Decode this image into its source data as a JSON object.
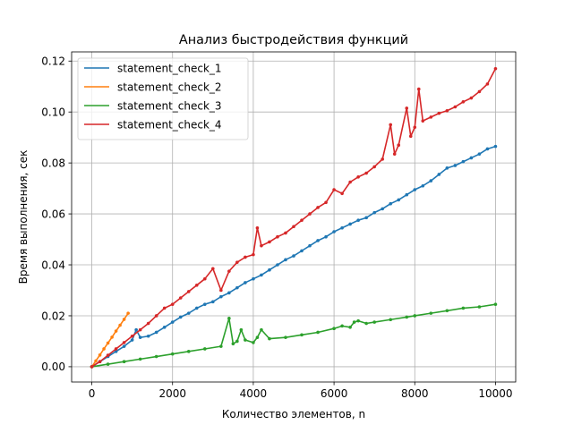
{
  "chart_data": {
    "type": "line",
    "title": "Анализ быстродействия функций",
    "xlabel": "Количество элементов, n",
    "ylabel": "Время выполнения, сек",
    "xlim": [
      -500,
      10500
    ],
    "ylim": [
      -0.006,
      0.1236
    ],
    "xticks": [
      0,
      2000,
      4000,
      6000,
      8000,
      10000
    ],
    "xtick_labels": [
      "0",
      "2000",
      "4000",
      "6000",
      "8000",
      "10000"
    ],
    "yticks": [
      0.0,
      0.02,
      0.04,
      0.06,
      0.08,
      0.1,
      0.12
    ],
    "ytick_labels": [
      "0.00",
      "0.02",
      "0.04",
      "0.06",
      "0.08",
      "0.10",
      "0.12"
    ],
    "grid": true,
    "legend": "top-left",
    "markers": true,
    "series": [
      {
        "name": "statement_check_1",
        "color": "#1f77b4",
        "x": [
          0,
          200,
          400,
          600,
          800,
          1000,
          1100,
          1200,
          1400,
          1600,
          1800,
          2000,
          2200,
          2400,
          2600,
          2800,
          3000,
          3200,
          3400,
          3600,
          3800,
          4000,
          4200,
          4400,
          4600,
          4800,
          5000,
          5200,
          5400,
          5600,
          5800,
          6000,
          6200,
          6400,
          6600,
          6800,
          7000,
          7200,
          7400,
          7600,
          7800,
          8000,
          8200,
          8400,
          8600,
          8800,
          9000,
          9200,
          9400,
          9600,
          9800,
          10000
        ],
        "y": [
          0.0,
          0.002,
          0.004,
          0.006,
          0.008,
          0.0105,
          0.0145,
          0.0115,
          0.012,
          0.0135,
          0.0155,
          0.0175,
          0.0195,
          0.021,
          0.023,
          0.0245,
          0.0255,
          0.0275,
          0.029,
          0.031,
          0.033,
          0.0345,
          0.036,
          0.038,
          0.04,
          0.042,
          0.0435,
          0.0455,
          0.0475,
          0.0495,
          0.051,
          0.053,
          0.0545,
          0.056,
          0.0575,
          0.0585,
          0.0605,
          0.062,
          0.064,
          0.0655,
          0.0675,
          0.0695,
          0.071,
          0.073,
          0.0755,
          0.078,
          0.079,
          0.0805,
          0.082,
          0.0835,
          0.0855,
          0.0865
        ]
      },
      {
        "name": "statement_check_2",
        "color": "#ff7f0e",
        "x": [
          0,
          100,
          200,
          300,
          400,
          500,
          600,
          700,
          800,
          900
        ],
        "y": [
          0.0,
          0.0023,
          0.0046,
          0.007,
          0.0093,
          0.0116,
          0.014,
          0.0163,
          0.0186,
          0.021
        ]
      },
      {
        "name": "statement_check_3",
        "color": "#2ca02c",
        "x": [
          0,
          400,
          800,
          1200,
          1600,
          2000,
          2400,
          2800,
          3200,
          3400,
          3500,
          3600,
          3700,
          3800,
          4000,
          4100,
          4200,
          4400,
          4800,
          5200,
          5600,
          6000,
          6200,
          6400,
          6500,
          6600,
          6800,
          7000,
          7400,
          7800,
          8000,
          8400,
          8800,
          9200,
          9600,
          10000
        ],
        "y": [
          0.0,
          0.001,
          0.002,
          0.003,
          0.004,
          0.005,
          0.006,
          0.007,
          0.008,
          0.019,
          0.009,
          0.01,
          0.0145,
          0.0105,
          0.0095,
          0.0115,
          0.0145,
          0.011,
          0.0115,
          0.0125,
          0.0135,
          0.015,
          0.016,
          0.0155,
          0.0175,
          0.018,
          0.017,
          0.0175,
          0.0185,
          0.0195,
          0.02,
          0.021,
          0.022,
          0.023,
          0.0235,
          0.0245
        ]
      },
      {
        "name": "statement_check_4",
        "color": "#d62728",
        "x": [
          0,
          200,
          400,
          600,
          800,
          1000,
          1200,
          1400,
          1600,
          1800,
          2000,
          2200,
          2400,
          2600,
          2800,
          3000,
          3200,
          3400,
          3600,
          3800,
          4000,
          4100,
          4200,
          4400,
          4600,
          4800,
          5000,
          5200,
          5400,
          5600,
          5800,
          6000,
          6200,
          6400,
          6600,
          6800,
          7000,
          7200,
          7400,
          7500,
          7600,
          7800,
          7900,
          8000,
          8100,
          8200,
          8400,
          8600,
          8800,
          9000,
          9200,
          9400,
          9600,
          9800,
          10000
        ],
        "y": [
          0.0,
          0.002,
          0.0045,
          0.007,
          0.0095,
          0.012,
          0.0145,
          0.017,
          0.02,
          0.023,
          0.0245,
          0.027,
          0.0295,
          0.032,
          0.0345,
          0.0385,
          0.03,
          0.0375,
          0.041,
          0.043,
          0.044,
          0.0545,
          0.0475,
          0.049,
          0.051,
          0.0525,
          0.055,
          0.0575,
          0.06,
          0.0625,
          0.0645,
          0.0695,
          0.068,
          0.0725,
          0.0745,
          0.076,
          0.0785,
          0.0815,
          0.095,
          0.0835,
          0.087,
          0.1015,
          0.0905,
          0.094,
          0.109,
          0.0965,
          0.098,
          0.0995,
          0.1005,
          0.102,
          0.104,
          0.1055,
          0.108,
          0.111,
          0.117
        ]
      }
    ]
  }
}
